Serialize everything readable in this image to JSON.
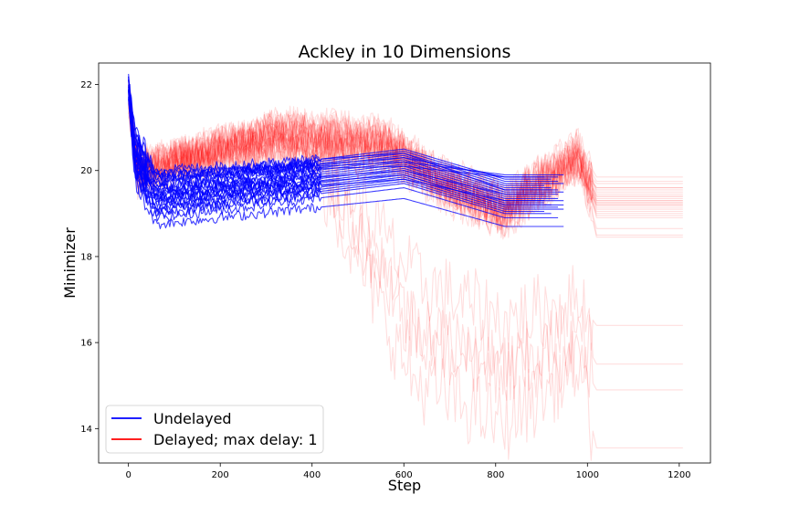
{
  "chart_data": {
    "type": "line",
    "title": "Ackley in 10 Dimensions",
    "xlabel": "Step",
    "ylabel": "Minimizer",
    "xlim": [
      -65,
      1268
    ],
    "ylim": [
      13.2,
      22.5
    ],
    "xticks": [
      0,
      200,
      400,
      600,
      800,
      1000,
      1200
    ],
    "yticks": [
      14,
      16,
      18,
      20,
      22
    ],
    "legend_position": "lower-left",
    "grid": false,
    "series_colors": {
      "undelayed": "#0000ff",
      "delayed": "#ff0000"
    },
    "series": [
      {
        "name": "Undelayed",
        "key": "undelayed",
        "runs": 26,
        "end_step": 950,
        "start_value": 21.9,
        "bottom_step": 60,
        "bottom_values": [
          18.75,
          18.9,
          19.0,
          19.05,
          19.1,
          19.15,
          19.2,
          19.25,
          19.3,
          19.35,
          19.4,
          19.45,
          19.5,
          19.55,
          19.6,
          19.65,
          19.7,
          19.75,
          19.8,
          19.85,
          19.9,
          19.95,
          20.0,
          19.35,
          19.45,
          19.55
        ],
        "peak_step": 600,
        "peak_values": [
          19.35,
          19.6,
          19.7,
          19.75,
          19.8,
          19.85,
          19.9,
          19.95,
          20.0,
          20.05,
          20.1,
          20.15,
          20.2,
          20.25,
          20.3,
          20.35,
          20.4,
          20.45,
          20.5,
          20.3,
          20.2,
          20.1,
          20.4,
          19.8,
          19.9,
          20.0
        ],
        "final_values": [
          18.7,
          18.9,
          19.0,
          19.05,
          19.1,
          19.15,
          19.2,
          19.25,
          19.3,
          19.35,
          19.4,
          19.45,
          19.5,
          19.55,
          19.6,
          19.65,
          19.7,
          19.75,
          19.8,
          19.85,
          19.9,
          19.85,
          19.55,
          19.3,
          19.2,
          19.45
        ]
      },
      {
        "name": "Delayed; max delay: 1",
        "key": "delayed",
        "runs": 30,
        "end_step": 1210,
        "start_value": 21.7,
        "early_value": 20.0,
        "hump_step": 320,
        "hump_values": [
          20.7,
          20.5,
          20.9,
          21.0,
          20.6,
          20.8,
          21.1,
          20.7,
          20.4,
          20.9,
          21.0,
          20.6,
          20.8,
          20.5,
          20.9,
          21.1,
          20.7,
          20.6,
          20.8,
          21.0,
          20.5,
          20.9,
          20.7,
          21.0,
          20.6,
          20.8,
          20.5,
          20.9,
          21.0,
          20.7
        ],
        "dip_step": 820,
        "dip_values": [
          18.9,
          19.1,
          19.3,
          19.0,
          18.8,
          19.2,
          19.4,
          19.1,
          18.9,
          19.3,
          19.0,
          19.2,
          18.8,
          19.1,
          19.4,
          19.0,
          18.9,
          19.2,
          19.3,
          19.1,
          18.8,
          19.0,
          19.2,
          16.5,
          15.3,
          15.4,
          14.1,
          19.1,
          19.0,
          19.3
        ],
        "bump_step": 980,
        "bump_values": [
          20.3,
          20.5,
          20.6,
          20.2,
          20.1,
          20.4,
          20.6,
          20.3,
          20.2,
          20.5,
          20.3,
          20.4,
          20.1,
          20.3,
          20.6,
          20.2,
          20.1,
          20.4,
          20.5,
          20.3,
          20.1,
          20.2,
          20.4,
          17.0,
          16.3,
          15.7,
          15.5,
          20.3,
          20.2,
          20.5
        ],
        "final_values": [
          18.45,
          18.5,
          19.85,
          19.7,
          19.6,
          19.55,
          19.5,
          19.45,
          19.4,
          19.35,
          19.3,
          19.25,
          19.2,
          19.15,
          19.1,
          19.05,
          19.0,
          18.95,
          18.9,
          19.3,
          19.2,
          18.65,
          19.6,
          16.4,
          15.5,
          14.9,
          13.55,
          19.4,
          19.25,
          19.75
        ]
      }
    ]
  }
}
